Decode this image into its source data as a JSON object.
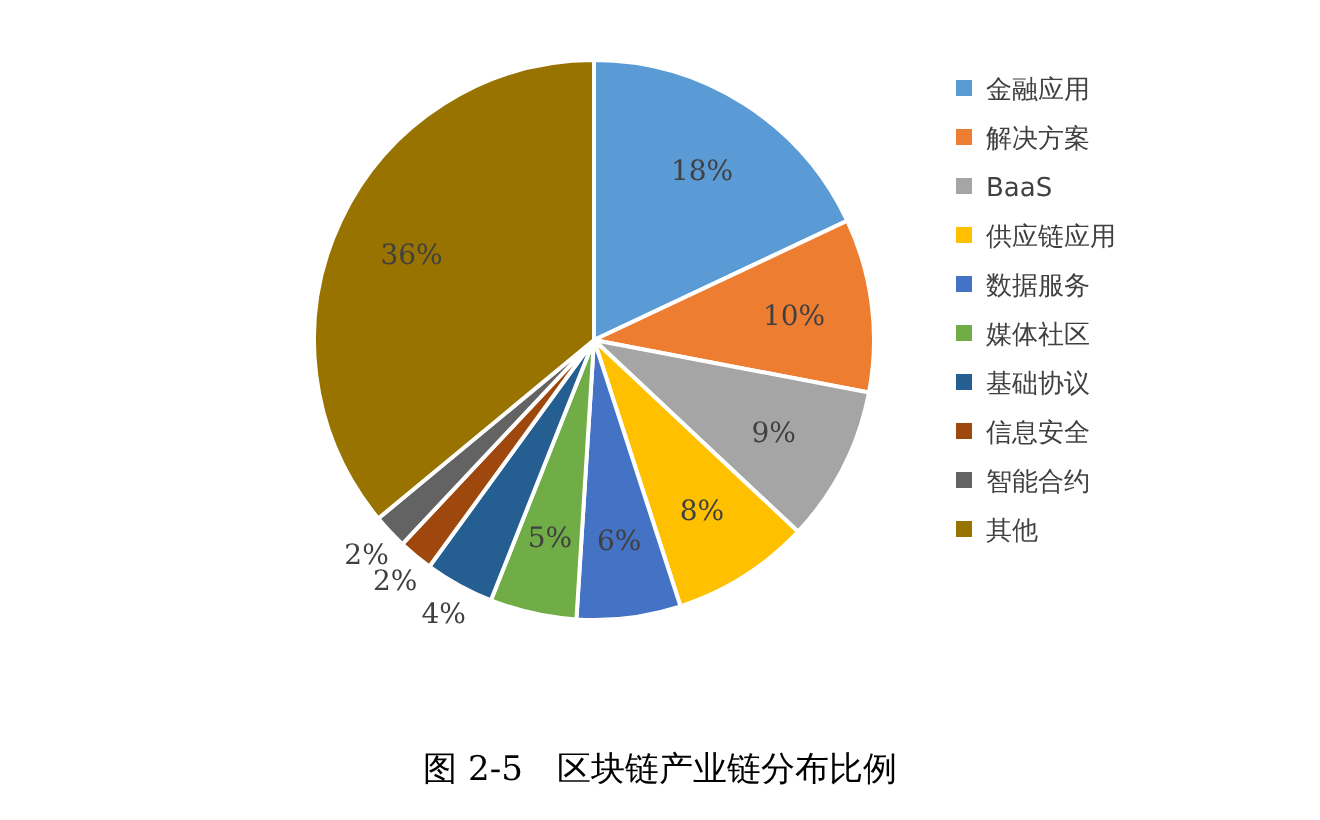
{
  "chart_data": {
    "type": "pie",
    "title": "图 2-5　区块链产业链分布比例",
    "categories": [
      "金融应用",
      "解决方案",
      "BaaS",
      "供应链应用",
      "数据服务",
      "媒体社区",
      "基础协议",
      "信息安全",
      "智能合约",
      "其他"
    ],
    "values": [
      18,
      10,
      9,
      8,
      6,
      5,
      4,
      2,
      2,
      36
    ],
    "colors": [
      "#5b9bd5",
      "#ed7d31",
      "#a5a5a5",
      "#ffc000",
      "#4472c4",
      "#70ad47",
      "#255e91",
      "#9e480e",
      "#636363",
      "#997300"
    ],
    "value_labels": [
      "18%",
      "10%",
      "9%",
      "8%",
      "6%",
      "5%",
      "4%",
      "2%",
      "2%",
      "36%"
    ],
    "legend": "right"
  }
}
